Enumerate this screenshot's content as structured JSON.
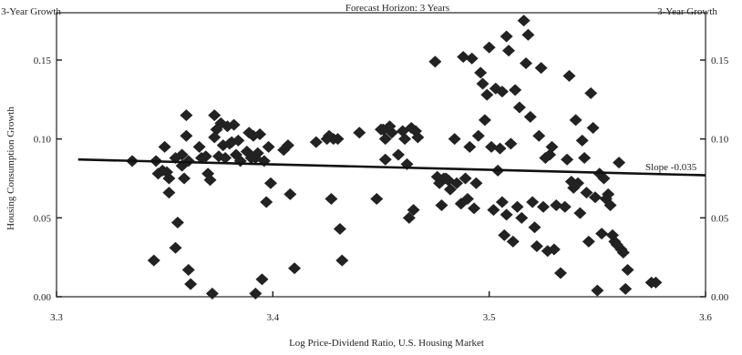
{
  "chart_data": {
    "type": "scatter",
    "title": "Forecast Horizon: 3 Years",
    "corner_label_left": "3-Year Growth",
    "corner_label_right": "3-Year Growth",
    "xlabel": "Log Price-Dividend Ratio, U.S. Housing Market",
    "ylabel": "Housing Consumption Growth",
    "xlim": [
      3.3,
      3.6
    ],
    "ylim": [
      0.0,
      0.18
    ],
    "x_ticks": [
      3.3,
      3.4,
      3.5,
      3.6
    ],
    "x_tick_labels": [
      "3.3",
      "3.4",
      "3.5",
      "3.6"
    ],
    "y_ticks": [
      0.0,
      0.05,
      0.1,
      0.15
    ],
    "y_tick_labels": [
      "0.00",
      "0.05",
      "0.10",
      "0.15"
    ],
    "grid": false,
    "marker": "diamond",
    "marker_color": "#222222",
    "fit_line": {
      "x": [
        3.31,
        3.6
      ],
      "y": [
        0.087,
        0.077
      ],
      "color": "#111111"
    },
    "fit_label": "Slope -0.035",
    "points": [
      [
        3.335,
        0.086
      ],
      [
        3.345,
        0.023
      ],
      [
        3.346,
        0.086
      ],
      [
        3.347,
        0.078
      ],
      [
        3.349,
        0.08
      ],
      [
        3.35,
        0.095
      ],
      [
        3.351,
        0.079
      ],
      [
        3.352,
        0.075
      ],
      [
        3.352,
        0.066
      ],
      [
        3.355,
        0.088
      ],
      [
        3.355,
        0.031
      ],
      [
        3.356,
        0.047
      ],
      [
        3.358,
        0.083
      ],
      [
        3.358,
        0.09
      ],
      [
        3.359,
        0.075
      ],
      [
        3.36,
        0.102
      ],
      [
        3.36,
        0.115
      ],
      [
        3.361,
        0.086
      ],
      [
        3.361,
        0.017
      ],
      [
        3.362,
        0.008
      ],
      [
        3.366,
        0.095
      ],
      [
        3.367,
        0.088
      ],
      [
        3.369,
        0.089
      ],
      [
        3.37,
        0.078
      ],
      [
        3.371,
        0.074
      ],
      [
        3.372,
        0.002
      ],
      [
        3.373,
        0.115
      ],
      [
        3.373,
        0.101
      ],
      [
        3.374,
        0.106
      ],
      [
        3.375,
        0.089
      ],
      [
        3.376,
        0.11
      ],
      [
        3.377,
        0.096
      ],
      [
        3.378,
        0.088
      ],
      [
        3.379,
        0.108
      ],
      [
        3.38,
        0.097
      ],
      [
        3.381,
        0.098
      ],
      [
        3.382,
        0.109
      ],
      [
        3.383,
        0.09
      ],
      [
        3.384,
        0.099
      ],
      [
        3.385,
        0.086
      ],
      [
        3.388,
        0.092
      ],
      [
        3.389,
        0.104
      ],
      [
        3.39,
        0.088
      ],
      [
        3.391,
        0.102
      ],
      [
        3.392,
        0.088
      ],
      [
        3.392,
        0.002
      ],
      [
        3.393,
        0.091
      ],
      [
        3.394,
        0.103
      ],
      [
        3.395,
        0.011
      ],
      [
        3.396,
        0.086
      ],
      [
        3.397,
        0.06
      ],
      [
        3.398,
        0.095
      ],
      [
        3.399,
        0.072
      ],
      [
        3.405,
        0.093
      ],
      [
        3.407,
        0.096
      ],
      [
        3.408,
        0.065
      ],
      [
        3.41,
        0.018
      ],
      [
        3.42,
        0.098
      ],
      [
        3.425,
        0.1
      ],
      [
        3.426,
        0.102
      ],
      [
        3.427,
        0.062
      ],
      [
        3.428,
        0.1
      ],
      [
        3.43,
        0.1
      ],
      [
        3.431,
        0.043
      ],
      [
        3.432,
        0.023
      ],
      [
        3.44,
        0.104
      ],
      [
        3.448,
        0.062
      ],
      [
        3.45,
        0.106
      ],
      [
        3.451,
        0.106
      ],
      [
        3.452,
        0.1
      ],
      [
        3.452,
        0.087
      ],
      [
        3.454,
        0.108
      ],
      [
        3.455,
        0.104
      ],
      [
        3.458,
        0.09
      ],
      [
        3.46,
        0.105
      ],
      [
        3.461,
        0.1
      ],
      [
        3.462,
        0.084
      ],
      [
        3.463,
        0.05
      ],
      [
        3.464,
        0.107
      ],
      [
        3.465,
        0.055
      ],
      [
        3.466,
        0.105
      ],
      [
        3.467,
        0.101
      ],
      [
        3.475,
        0.149
      ],
      [
        3.476,
        0.076
      ],
      [
        3.477,
        0.072
      ],
      [
        3.478,
        0.058
      ],
      [
        3.479,
        0.075
      ],
      [
        3.48,
        0.075
      ],
      [
        3.481,
        0.074
      ],
      [
        3.482,
        0.068
      ],
      [
        3.484,
        0.1
      ],
      [
        3.485,
        0.072
      ],
      [
        3.487,
        0.059
      ],
      [
        3.488,
        0.152
      ],
      [
        3.489,
        0.075
      ],
      [
        3.49,
        0.062
      ],
      [
        3.491,
        0.095
      ],
      [
        3.492,
        0.151
      ],
      [
        3.493,
        0.056
      ],
      [
        3.494,
        0.072
      ],
      [
        3.495,
        0.102
      ],
      [
        3.496,
        0.142
      ],
      [
        3.497,
        0.135
      ],
      [
        3.498,
        0.112
      ],
      [
        3.499,
        0.128
      ],
      [
        3.5,
        0.158
      ],
      [
        3.501,
        0.095
      ],
      [
        3.502,
        0.055
      ],
      [
        3.503,
        0.132
      ],
      [
        3.504,
        0.08
      ],
      [
        3.505,
        0.094
      ],
      [
        3.506,
        0.13
      ],
      [
        3.506,
        0.06
      ],
      [
        3.507,
        0.039
      ],
      [
        3.508,
        0.165
      ],
      [
        3.508,
        0.052
      ],
      [
        3.509,
        0.156
      ],
      [
        3.51,
        0.097
      ],
      [
        3.511,
        0.035
      ],
      [
        3.512,
        0.131
      ],
      [
        3.513,
        0.057
      ],
      [
        3.514,
        0.12
      ],
      [
        3.515,
        0.05
      ],
      [
        3.516,
        0.175
      ],
      [
        3.517,
        0.148
      ],
      [
        3.518,
        0.166
      ],
      [
        3.519,
        0.114
      ],
      [
        3.52,
        0.06
      ],
      [
        3.521,
        0.044
      ],
      [
        3.522,
        0.032
      ],
      [
        3.523,
        0.102
      ],
      [
        3.524,
        0.145
      ],
      [
        3.525,
        0.057
      ],
      [
        3.526,
        0.088
      ],
      [
        3.527,
        0.029
      ],
      [
        3.528,
        0.09
      ],
      [
        3.529,
        0.095
      ],
      [
        3.53,
        0.03
      ],
      [
        3.531,
        0.058
      ],
      [
        3.533,
        0.015
      ],
      [
        3.535,
        0.057
      ],
      [
        3.536,
        0.087
      ],
      [
        3.537,
        0.14
      ],
      [
        3.538,
        0.073
      ],
      [
        3.539,
        0.069
      ],
      [
        3.54,
        0.112
      ],
      [
        3.541,
        0.072
      ],
      [
        3.542,
        0.053
      ],
      [
        3.543,
        0.099
      ],
      [
        3.544,
        0.088
      ],
      [
        3.545,
        0.066
      ],
      [
        3.546,
        0.035
      ],
      [
        3.547,
        0.129
      ],
      [
        3.548,
        0.107
      ],
      [
        3.549,
        0.063
      ],
      [
        3.55,
        0.004
      ],
      [
        3.551,
        0.078
      ],
      [
        3.552,
        0.04
      ],
      [
        3.553,
        0.075
      ],
      [
        3.554,
        0.062
      ],
      [
        3.555,
        0.065
      ],
      [
        3.556,
        0.058
      ],
      [
        3.557,
        0.039
      ],
      [
        3.558,
        0.035
      ],
      [
        3.559,
        0.033
      ],
      [
        3.56,
        0.085
      ],
      [
        3.561,
        0.03
      ],
      [
        3.562,
        0.028
      ],
      [
        3.563,
        0.005
      ],
      [
        3.564,
        0.017
      ],
      [
        3.575,
        0.009
      ],
      [
        3.577,
        0.009
      ]
    ]
  }
}
